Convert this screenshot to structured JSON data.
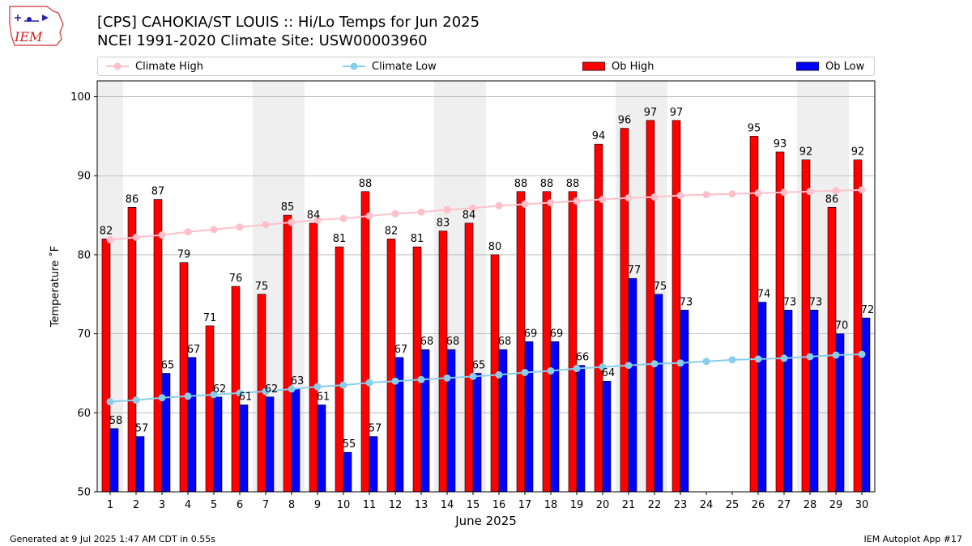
{
  "header": {
    "logo_text": "IEM",
    "title_line1": "[CPS] CAHOKIA/ST LOUIS :: Hi/Lo Temps for Jun 2025",
    "title_line2": "NCEI 1991-2020 Climate Site: USW00003960"
  },
  "footer": {
    "left": "Generated at 9 Jul 2025 1:47 AM CDT in 0.55s",
    "right": "IEM Autoplot App #17"
  },
  "chart_data": {
    "type": "bar",
    "xlabel": "June 2025",
    "ylabel": "Temperature ˚F",
    "ylim": [
      50,
      102
    ],
    "yticks": [
      50,
      60,
      70,
      80,
      90,
      100
    ],
    "grid": "horizontal",
    "legend_placement": "top",
    "categories": [
      "1",
      "2",
      "3",
      "4",
      "5",
      "6",
      "7",
      "8",
      "9",
      "10",
      "11",
      "12",
      "13",
      "14",
      "15",
      "16",
      "17",
      "18",
      "19",
      "20",
      "21",
      "22",
      "23",
      "24",
      "25",
      "26",
      "27",
      "28",
      "29",
      "30"
    ],
    "weekend_shading": [
      [
        1,
        1
      ],
      [
        7,
        8
      ],
      [
        14,
        15
      ],
      [
        21,
        22
      ],
      [
        28,
        29
      ]
    ],
    "colors": {
      "ob_high": "#ff0000",
      "ob_low": "#0000ff",
      "climate_high": "#ffc0cb",
      "climate_low": "#87ceeb",
      "weekend": "#efefef",
      "grid": "#b0b0b0"
    },
    "series": [
      {
        "name": "Climate High",
        "kind": "line",
        "values": [
          81.9,
          82.2,
          82.5,
          82.9,
          83.2,
          83.5,
          83.8,
          84.1,
          84.4,
          84.6,
          84.9,
          85.2,
          85.4,
          85.7,
          85.9,
          86.2,
          86.4,
          86.6,
          86.8,
          87.0,
          87.2,
          87.3,
          87.5,
          87.6,
          87.7,
          87.8,
          87.9,
          88.0,
          88.1,
          88.2
        ]
      },
      {
        "name": "Climate Low",
        "kind": "line",
        "values": [
          61.4,
          61.6,
          61.9,
          62.1,
          62.3,
          62.5,
          62.7,
          63.0,
          63.3,
          63.5,
          63.8,
          64.0,
          64.2,
          64.4,
          64.6,
          64.8,
          65.1,
          65.3,
          65.6,
          65.8,
          66.0,
          66.2,
          66.3,
          66.5,
          66.7,
          66.8,
          66.9,
          67.1,
          67.3,
          67.4
        ]
      },
      {
        "name": "Ob High",
        "kind": "bar",
        "values": [
          82,
          86,
          87,
          79,
          71,
          76,
          75,
          85,
          84,
          81,
          88,
          82,
          81,
          83,
          84,
          80,
          88,
          88,
          88,
          94,
          96,
          97,
          97,
          null,
          null,
          95,
          93,
          92,
          86,
          92
        ]
      },
      {
        "name": "Ob Low",
        "kind": "bar",
        "values": [
          58,
          57,
          65,
          67,
          62,
          61,
          62,
          63,
          61,
          55,
          57,
          67,
          68,
          68,
          65,
          68,
          69,
          69,
          66,
          64,
          77,
          75,
          73,
          null,
          null,
          74,
          73,
          73,
          70,
          72
        ]
      }
    ]
  }
}
